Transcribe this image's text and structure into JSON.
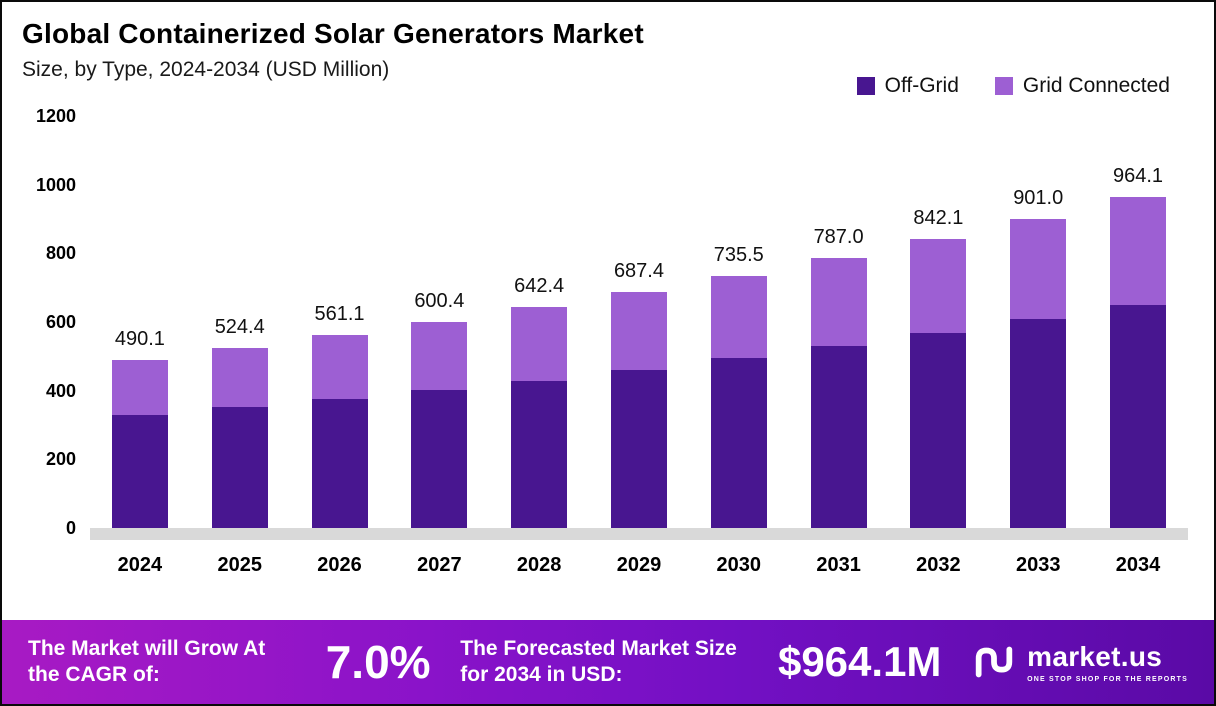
{
  "header": {
    "title": "Global Containerized Solar Generators Market",
    "subtitle": "Size, by Type, 2024-2034 (USD Million)"
  },
  "legend": [
    {
      "label": "Off-Grid",
      "color": "#481690"
    },
    {
      "label": "Grid Connected",
      "color": "#9d5fd3"
    }
  ],
  "chart_data": {
    "type": "bar",
    "stacked": true,
    "title": "Global Containerized Solar Generators Market Size, by Type, 2024-2034 (USD Million)",
    "categories": [
      "2024",
      "2025",
      "2026",
      "2027",
      "2028",
      "2029",
      "2030",
      "2031",
      "2032",
      "2033",
      "2034"
    ],
    "series": [
      {
        "name": "Off-Grid",
        "color": "#481690",
        "values": [
          330.0,
          352.0,
          375.0,
          401.0,
          429.0,
          460.0,
          494.0,
          529.0,
          568.0,
          608.0,
          650.0
        ]
      },
      {
        "name": "Grid Connected",
        "color": "#9d5fd3",
        "values": [
          160.1,
          172.4,
          186.1,
          199.4,
          213.4,
          227.4,
          241.5,
          258.0,
          274.1,
          293.0,
          314.1
        ]
      }
    ],
    "totals": [
      "490.1",
      "524.4",
      "561.1",
      "600.4",
      "642.4",
      "687.4",
      "735.5",
      "787.0",
      "842.1",
      "901.0",
      "964.1"
    ],
    "xlabel": "",
    "ylabel": "",
    "ylim": [
      0,
      1200
    ],
    "yticks": [
      0,
      200,
      400,
      600,
      800,
      1000,
      1200
    ],
    "grid": false,
    "legend_position": "top-right"
  },
  "footer": {
    "cagr_label": "The Market will Grow At the CAGR of:",
    "cagr_value": "7.0%",
    "forecast_label": "The Forecasted Market Size for 2034 in USD:",
    "forecast_value": "$964.1M",
    "brand": "market.us",
    "brand_tagline": "ONE STOP SHOP FOR THE REPORTS"
  }
}
